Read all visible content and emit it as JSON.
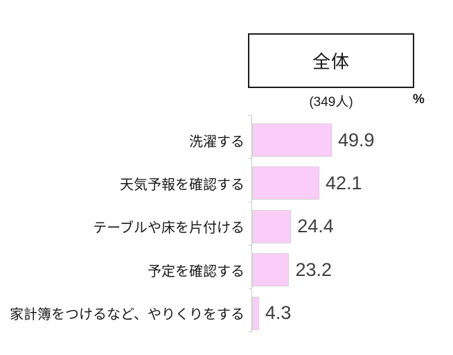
{
  "header": {
    "group_label": "全体",
    "sample_size": "(349人)",
    "unit_label": "%"
  },
  "chart_data": {
    "type": "bar",
    "orientation": "horizontal",
    "title": "全体",
    "sample_size_text": "(349人)",
    "unit": "%",
    "categories": [
      "洗濯する",
      "天気予報を確認する",
      "テーブルや床を片付ける",
      "予定を確認する",
      "家計簿をつけるなど、やりくりをする"
    ],
    "values": [
      49.9,
      42.1,
      24.4,
      23.2,
      4.3
    ],
    "value_labels": [
      "49.9",
      "42.1",
      "24.4",
      "23.2",
      "4.3"
    ],
    "xlim": [
      0,
      55
    ],
    "grid": false,
    "legend": "none",
    "bar_color": "#FACDF8",
    "bar_border_color": "#D5D2D2",
    "axis_color": "#C9C6C6",
    "value_text_color": "#3F3F3F",
    "category_text_color": "#1A1A1A"
  }
}
